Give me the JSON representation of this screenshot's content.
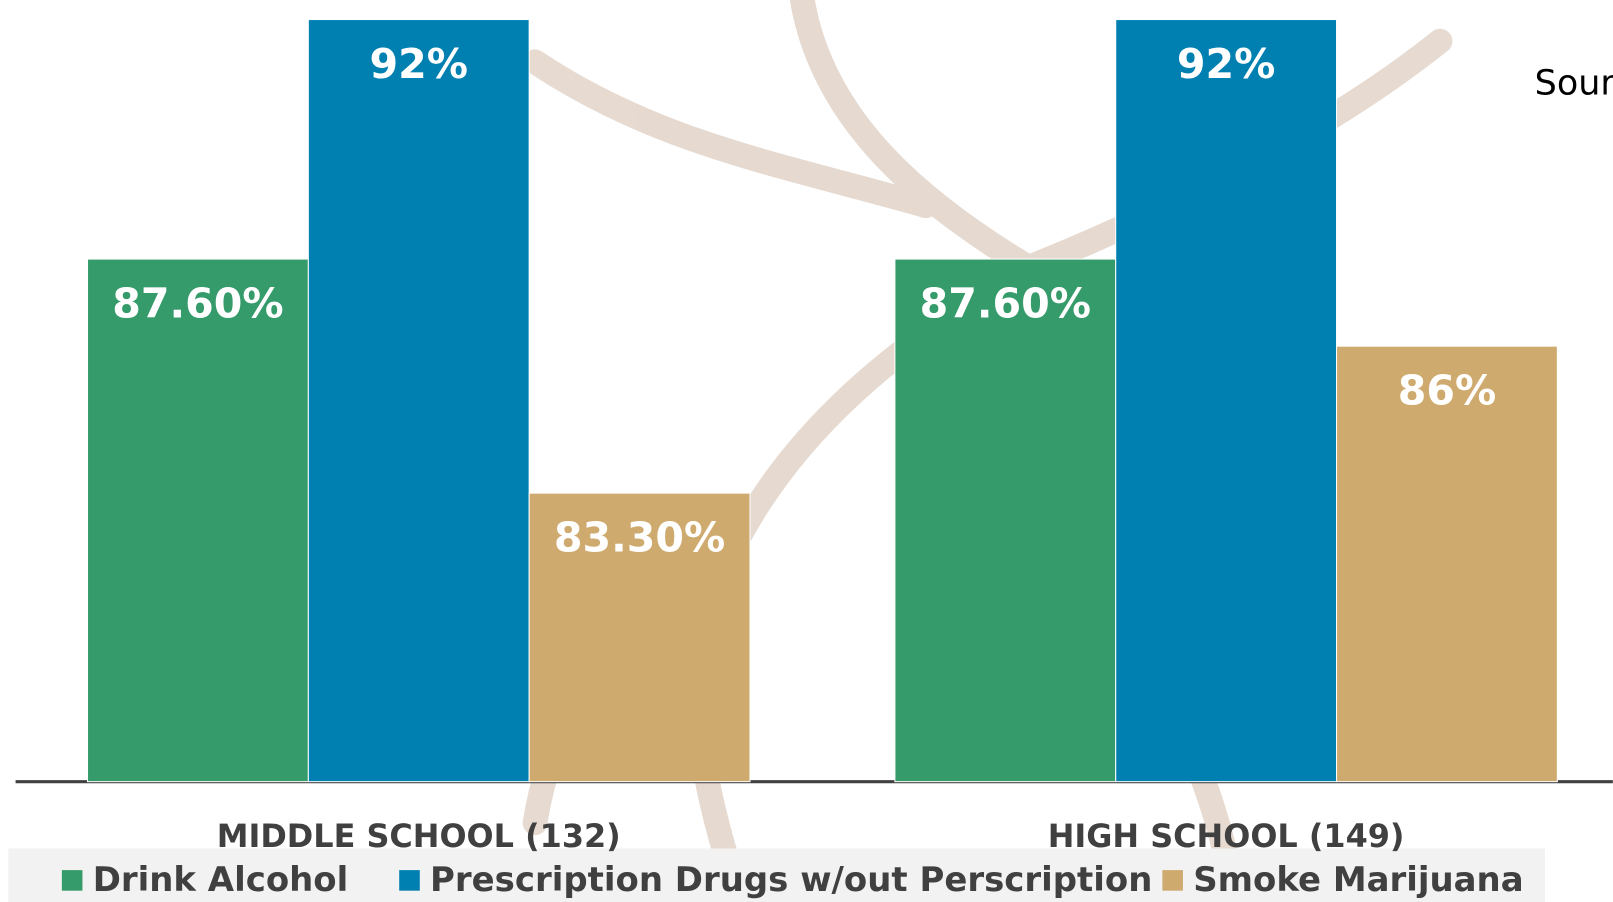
{
  "chart_data": {
    "type": "bar",
    "annotation": "Sour",
    "categories": [
      "MIDDLE SCHOOL (132)",
      "HIGH SCHOOL (149)"
    ],
    "series": [
      {
        "name": "Drink Alcohol",
        "color": "#359b6a",
        "values": [
          87.6,
          87.6
        ],
        "value_labels": [
          "87.60%",
          "87.60%"
        ]
      },
      {
        "name": "Prescription Drugs w/out Perscription",
        "color": "#0080b0",
        "values": [
          92,
          92
        ],
        "value_labels": [
          "92%",
          "92%"
        ]
      },
      {
        "name": "Smoke Marijuana",
        "color": "#cfaa6e",
        "values": [
          83.3,
          86
        ],
        "value_labels": [
          "83.30%",
          "86%"
        ]
      }
    ],
    "ylim": [
      78,
      92
    ],
    "legend": "bottom"
  }
}
